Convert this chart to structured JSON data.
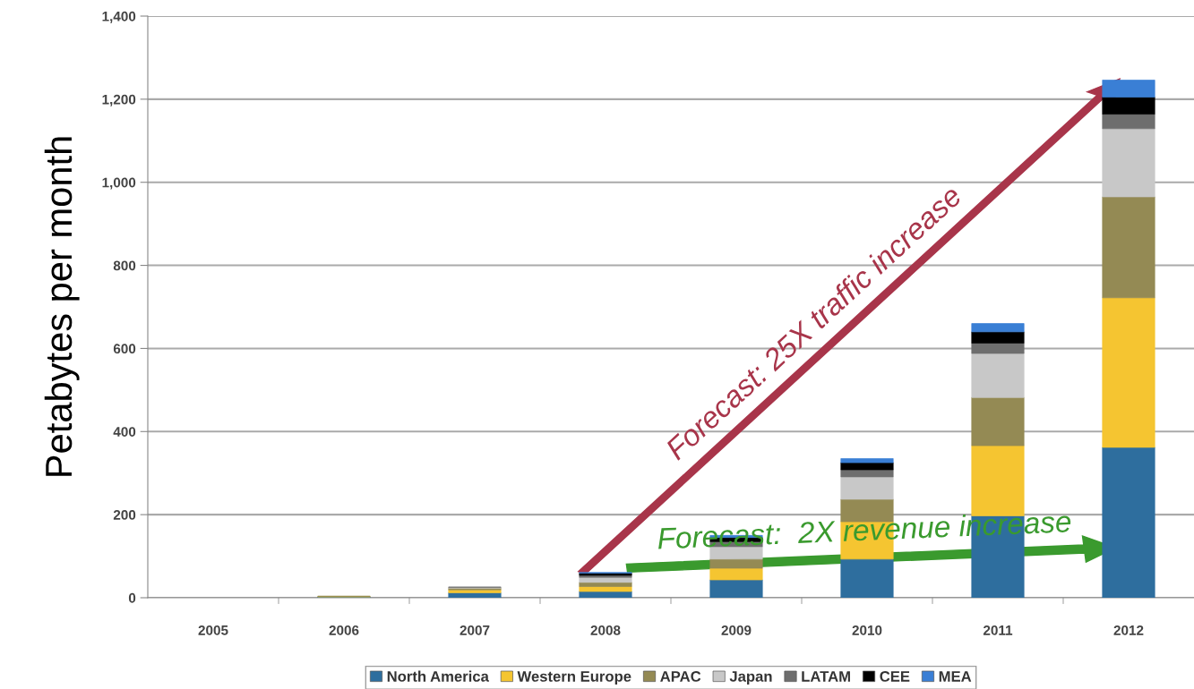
{
  "chart_data": {
    "type": "bar",
    "stacked": true,
    "ylabel": "Petabytes per month",
    "categories": [
      "2005",
      "2006",
      "2007",
      "2008",
      "2009",
      "2010",
      "2011",
      "2012"
    ],
    "series": [
      {
        "name": "North America",
        "color": "#2e6e9e",
        "values": [
          0,
          2,
          12,
          15,
          43,
          93,
          197,
          362
        ]
      },
      {
        "name": "Western Europe",
        "color": "#f5c531",
        "values": [
          0,
          1,
          7,
          12,
          28,
          90,
          169,
          360
        ]
      },
      {
        "name": "APAC",
        "color": "#948a54",
        "values": [
          0,
          1,
          4,
          10,
          22,
          54,
          116,
          243
        ]
      },
      {
        "name": "Japan",
        "color": "#c8c8c8",
        "values": [
          0,
          0,
          2,
          12,
          30,
          54,
          106,
          164
        ]
      },
      {
        "name": "LATAM",
        "color": "#6e6e6e",
        "values": [
          0,
          0,
          1,
          5,
          12,
          17,
          25,
          35
        ]
      },
      {
        "name": "CEE",
        "color": "#000000",
        "values": [
          0,
          0,
          0,
          5,
          10,
          17,
          27,
          41
        ]
      },
      {
        "name": "MEA",
        "color": "#3a7fd5",
        "values": [
          0,
          0,
          0,
          2,
          5,
          10,
          20,
          41
        ]
      }
    ],
    "ylim": [
      0,
      1400
    ],
    "yticks": [
      {
        "value": 0,
        "label": "0"
      },
      {
        "value": 200,
        "label": "200"
      },
      {
        "value": 400,
        "label": "400"
      },
      {
        "value": 600,
        "label": "600"
      },
      {
        "value": 800,
        "label": "800"
      },
      {
        "value": 1000,
        "label": "1,000"
      },
      {
        "value": 1200,
        "label": "1,200"
      },
      {
        "value": 1400,
        "label": "1,400"
      }
    ],
    "grid": "y",
    "legend": "bottom",
    "annotations": [
      "Forecast: 25X traffic increase",
      "Forecast:  2X revenue increase"
    ]
  }
}
